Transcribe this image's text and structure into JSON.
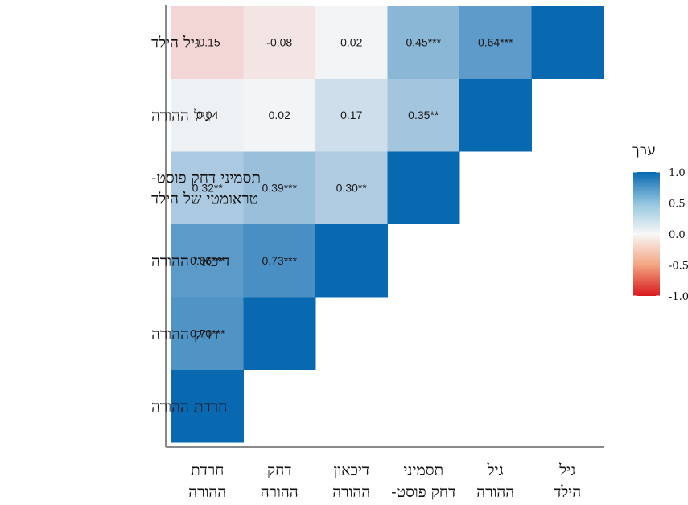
{
  "chart_data": {
    "type": "heatmap",
    "variables": [
      "חרדת ההורה",
      "דחק ההורה",
      "דיכאון ההורה",
      "תסמיני דחק פוסט-טראומטי של הילד",
      "גיל ההורה",
      "גיל הילד"
    ],
    "row_labels": [
      [
        "גיל הילד"
      ],
      [
        "גיל ההורה"
      ],
      [
        "תסמיני דחק פוסט-",
        "טראומטי של הילד"
      ],
      [
        "דיכאון ההורה"
      ],
      [
        "דחק ההורה"
      ],
      [
        "חרדת ההורה"
      ]
    ],
    "col_labels": [
      [
        "חרדת",
        "ההורה"
      ],
      [
        "דחק",
        "ההורה"
      ],
      [
        "דיכאון",
        "ההורה"
      ],
      [
        "תסמיני",
        "דחק פוסט-"
      ],
      [
        "גיל",
        "ההורה"
      ],
      [
        "גיל",
        "הילד"
      ]
    ],
    "matrix": [
      [
        1.0,
        0.7,
        0.65,
        0.32,
        0.04,
        -0.15
      ],
      [
        0.7,
        1.0,
        0.73,
        0.39,
        0.02,
        -0.08
      ],
      [
        0.65,
        0.73,
        1.0,
        0.3,
        0.17,
        0.02
      ],
      [
        0.32,
        0.39,
        0.3,
        1.0,
        0.35,
        0.45
      ],
      [
        0.04,
        0.02,
        0.17,
        0.35,
        1.0,
        0.64
      ],
      [
        -0.15,
        -0.08,
        0.02,
        0.45,
        0.64,
        1.0
      ]
    ],
    "cell_labels": [
      [
        "",
        "0.70***",
        "0.65***",
        "0.32**",
        "0.04",
        "-0.15"
      ],
      [
        "0.70***",
        "",
        "0.73***",
        "0.39***",
        "0.02",
        "-0.08"
      ],
      [
        "0.65***",
        "0.73***",
        "",
        "0.30**",
        "0.17",
        "0.02"
      ],
      [
        "0.32**",
        "0.39***",
        "0.30**",
        "",
        "0.35**",
        "0.45***"
      ],
      [
        "0.04",
        "0.02",
        "0.17",
        "0.35**",
        "",
        "0.64***"
      ],
      [
        "-0.15",
        "-0.08",
        "0.02",
        "0.45***",
        "0.64***",
        ""
      ]
    ],
    "triangle": "lower",
    "legend": {
      "title": "ערך",
      "ticks": [
        "1.0",
        "0.5",
        "0.0",
        "-0.5",
        "-1.0"
      ],
      "range": [
        -1,
        1
      ],
      "placement": "right"
    },
    "colors": {
      "negative": "#d7191c",
      "neutral": "#f7f7f7",
      "positive": "#0868b0"
    }
  }
}
